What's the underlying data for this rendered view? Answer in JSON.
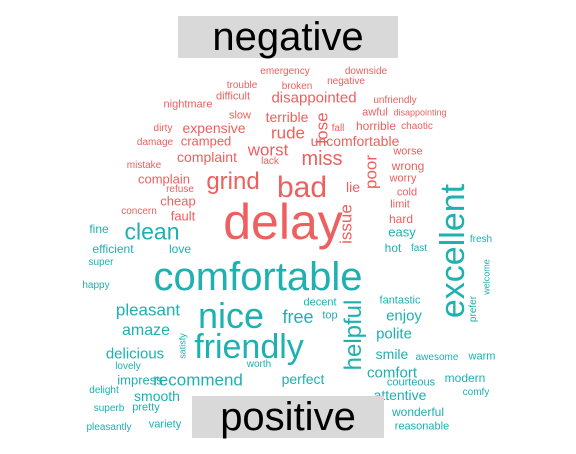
{
  "labels": {
    "negative": "negative",
    "positive": "positive"
  },
  "colors": {
    "negative": "#ee5f5f",
    "positive": "#1fb0b0",
    "label_box": "#d9d9d9"
  },
  "negative_words": [
    "delay",
    "bad",
    "grind",
    "miss",
    "worst",
    "rude",
    "lose",
    "issue",
    "poor",
    "disappointed",
    "terrible",
    "expensive",
    "cramped",
    "complaint",
    "uncomfortable",
    "lie",
    "complain",
    "cheap",
    "fault",
    "difficult",
    "broken",
    "trouble",
    "emergency",
    "negative",
    "downside",
    "nightmare",
    "slow",
    "dirty",
    "damage",
    "mistake",
    "refuse",
    "concern",
    "lack",
    "fall",
    "horrible",
    "awful",
    "chaotic",
    "unfriendly",
    "disappointing",
    "worse",
    "wrong",
    "worry",
    "cold",
    "limit",
    "hard"
  ],
  "positive_words": [
    "comfortable",
    "nice",
    "friendly",
    "excellent",
    "helpful",
    "clean",
    "free",
    "pleasant",
    "amaze",
    "recommend",
    "delicious",
    "comfort",
    "polite",
    "enjoy",
    "smile",
    "attentive",
    "perfect",
    "smooth",
    "impress",
    "fine",
    "efficient",
    "love",
    "super",
    "happy",
    "easy",
    "hot",
    "fast",
    "fresh",
    "welcome",
    "prefer",
    "decent",
    "top",
    "fantastic",
    "satisfy",
    "lovely",
    "worth",
    "delight",
    "superb",
    "pretty",
    "pleasantly",
    "variety",
    "wonderful",
    "reasonable",
    "courteous",
    "modern",
    "comfy",
    "warm",
    "awesome"
  ]
}
